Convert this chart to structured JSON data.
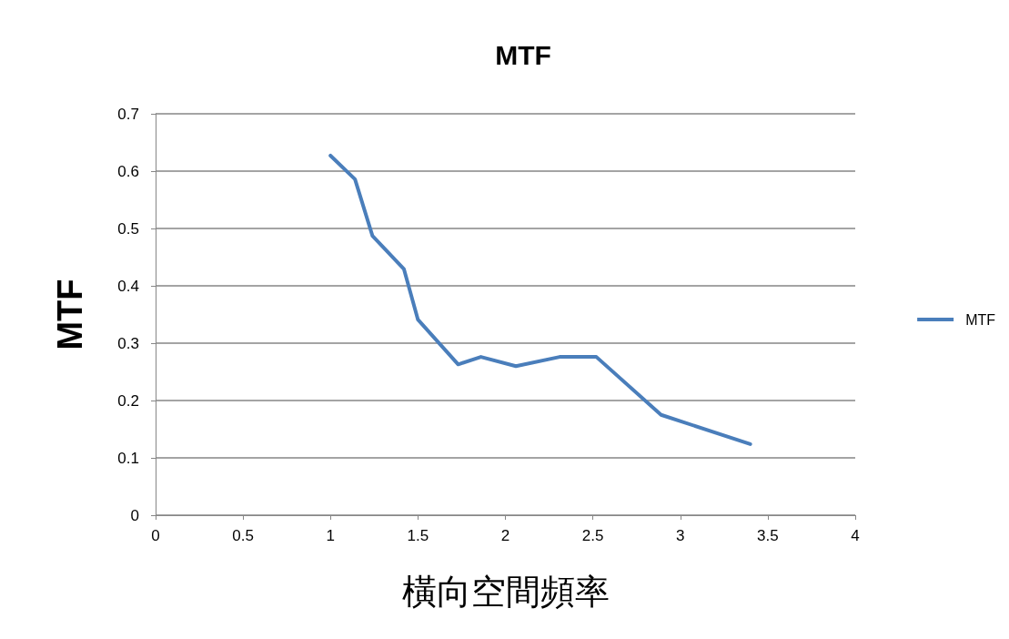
{
  "chart_data": {
    "type": "line",
    "title": "MTF",
    "xlabel": "橫向空間頻率",
    "ylabel": "MTF",
    "series": [
      {
        "name": "MTF",
        "color": "#4a7ebb",
        "x": [
          1.0,
          1.14,
          1.24,
          1.42,
          1.5,
          1.73,
          1.86,
          2.06,
          2.31,
          2.52,
          2.89,
          3.4
        ],
        "values": [
          0.627,
          0.586,
          0.487,
          0.429,
          0.341,
          0.263,
          0.276,
          0.26,
          0.276,
          0.276,
          0.175,
          0.124
        ]
      }
    ],
    "xlim": [
      0,
      4
    ],
    "xticks": [
      0,
      0.5,
      1,
      1.5,
      2,
      2.5,
      3,
      3.5,
      4
    ],
    "ylim": [
      0,
      0.7
    ],
    "yticks": [
      0,
      0.1,
      0.2,
      0.3,
      0.4,
      0.5,
      0.6,
      0.7
    ],
    "grid": "y",
    "legend": "right",
    "marker": "none",
    "line_style": "solid"
  }
}
